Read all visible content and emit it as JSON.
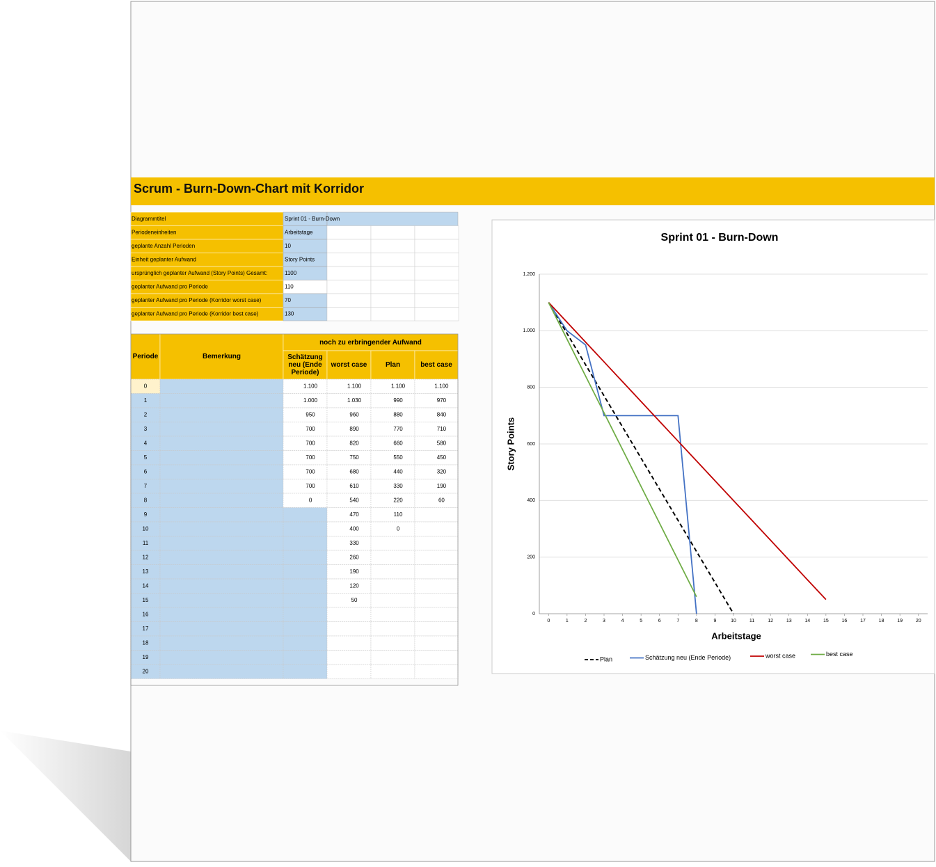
{
  "header": {
    "title": "Scrum - Burn-Down-Chart mit Korridor"
  },
  "settings": [
    {
      "label": "Diagrammtitel",
      "value": "Sprint 01 - Burn-Down"
    },
    {
      "label": "Periodeneinheiten",
      "value": "Arbeitstage"
    },
    {
      "label": "geplante Anzahl Perioden",
      "value": "10"
    },
    {
      "label": "Einheit geplanter Aufwand",
      "value": "Story Points"
    },
    {
      "label": "ursprünglich geplanter Aufwand (Story Points) Gesamt:",
      "value": "1100"
    },
    {
      "label": "geplanter Aufwand pro Periode",
      "value": "110"
    },
    {
      "label": "geplanter Aufwand pro Periode (Korridor worst case)",
      "value": "70"
    },
    {
      "label": "geplanter Aufwand pro Periode (Korridor best case)",
      "value": "130"
    }
  ],
  "table": {
    "group_header": "noch zu erbringender Aufwand",
    "headers": [
      "Periode",
      "Bemerkung",
      "Schätzung neu (Ende Periode)",
      "worst case",
      "Plan",
      "best case"
    ],
    "rows": [
      [
        "0",
        null,
        "1.100",
        "1.100",
        "1.100",
        "1.100"
      ],
      [
        "1",
        null,
        "1.000",
        "1.030",
        "990",
        "970"
      ],
      [
        "2",
        null,
        "950",
        "960",
        "880",
        "840"
      ],
      [
        "3",
        null,
        "700",
        "890",
        "770",
        "710"
      ],
      [
        "4",
        null,
        "700",
        "820",
        "660",
        "580"
      ],
      [
        "5",
        null,
        "700",
        "750",
        "550",
        "450"
      ],
      [
        "6",
        null,
        "700",
        "680",
        "440",
        "320"
      ],
      [
        "7",
        null,
        "700",
        "610",
        "330",
        "190"
      ],
      [
        "8",
        null,
        "0",
        "540",
        "220",
        "60"
      ],
      [
        "9",
        null,
        null,
        "470",
        "110",
        null
      ],
      [
        "10",
        null,
        null,
        "400",
        "0",
        null
      ],
      [
        "11",
        null,
        null,
        "330",
        null,
        null
      ],
      [
        "12",
        null,
        null,
        "260",
        null,
        null
      ],
      [
        "13",
        null,
        null,
        "190",
        null,
        null
      ],
      [
        "14",
        null,
        null,
        "120",
        null,
        null
      ],
      [
        "15",
        null,
        null,
        "50",
        null,
        null
      ],
      [
        "16",
        null,
        null,
        null,
        null,
        null
      ],
      [
        "17",
        null,
        null,
        null,
        null,
        null
      ],
      [
        "18",
        null,
        null,
        null,
        null,
        null
      ],
      [
        "19",
        null,
        null,
        null,
        null,
        null
      ],
      [
        "20",
        null,
        null,
        null,
        null,
        null
      ]
    ]
  },
  "chart_data": {
    "type": "line",
    "title": "Sprint 01 - Burn-Down",
    "x_label": "Arbeitstage",
    "y_label": "Story Points",
    "x": [
      0,
      1,
      2,
      3,
      4,
      5,
      6,
      7,
      8,
      9,
      10,
      11,
      12,
      13,
      14,
      15,
      16,
      17,
      18,
      19,
      20
    ],
    "xlim": [
      -0.5,
      20.5
    ],
    "xticks": [
      0,
      1,
      2,
      3,
      4,
      5,
      6,
      7,
      8,
      9,
      10,
      11,
      12,
      13,
      14,
      15,
      16,
      17,
      18,
      19,
      20
    ],
    "ylim": [
      0,
      1200
    ],
    "yticks": [
      0,
      200,
      400,
      600,
      800,
      {
        "value": 1000,
        "label": "1.000"
      },
      {
        "value": 1200,
        "label": "1.200"
      }
    ],
    "grid": true,
    "legend": "bottom",
    "series": [
      {
        "name": "Plan",
        "color": "#000000",
        "dashed": true,
        "values": [
          1100,
          990,
          880,
          770,
          660,
          550,
          440,
          330,
          220,
          110,
          0,
          null,
          null,
          null,
          null,
          null,
          null,
          null,
          null,
          null,
          null
        ]
      },
      {
        "name": "Schätzung neu (Ende Periode)",
        "color": "#4472c4",
        "values": [
          1100,
          1000,
          950,
          700,
          700,
          700,
          700,
          700,
          0,
          null,
          null,
          null,
          null,
          null,
          null,
          null,
          null,
          null,
          null,
          null,
          null
        ]
      },
      {
        "name": "worst case",
        "color": "#c00000",
        "values": [
          1100,
          1030,
          960,
          890,
          820,
          750,
          680,
          610,
          540,
          470,
          400,
          330,
          260,
          190,
          120,
          50,
          null,
          null,
          null,
          null,
          null
        ]
      },
      {
        "name": "best case",
        "color": "#70ad47",
        "values": [
          1100,
          970,
          840,
          710,
          580,
          450,
          320,
          190,
          60,
          null,
          null,
          null,
          null,
          null,
          null,
          null,
          null,
          null,
          null,
          null,
          null
        ]
      }
    ]
  }
}
